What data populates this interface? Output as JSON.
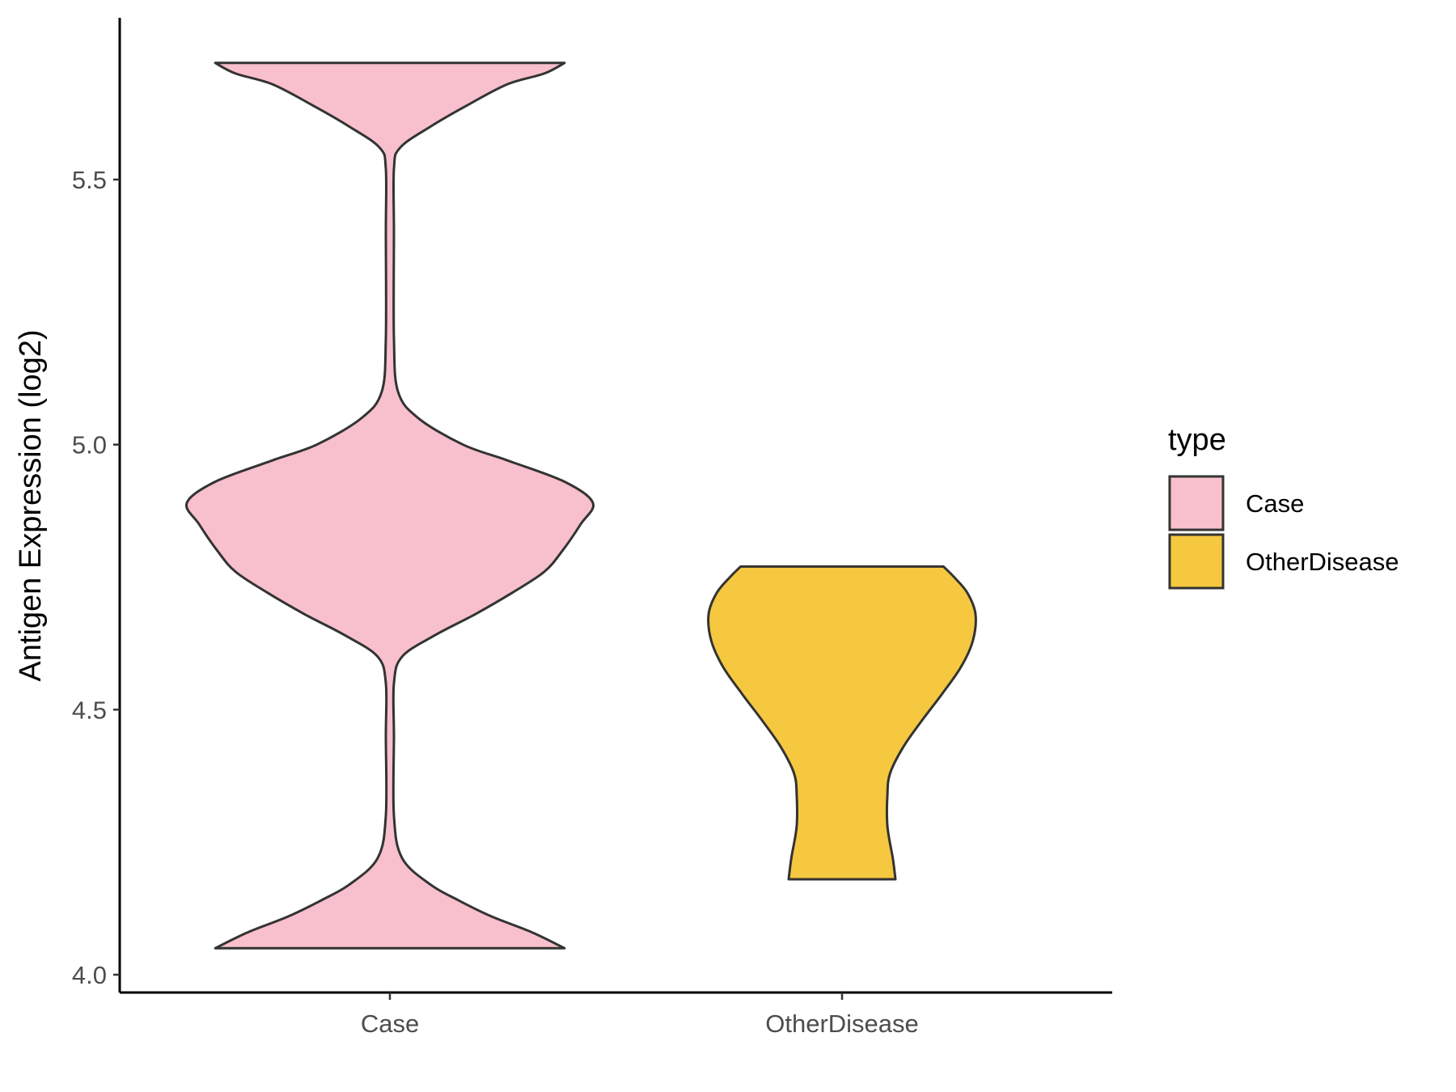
{
  "chart_data": {
    "type": "violin",
    "xlabel": "",
    "ylabel": "Antigen Expression (log2)",
    "ylim": [
      3.96,
      5.78
    ],
    "yticks": [
      "4.0",
      "4.5",
      "5.0",
      "5.5"
    ],
    "ytick_values": [
      4.0,
      4.5,
      5.0,
      5.5
    ],
    "categories": [
      "Case",
      "OtherDisease"
    ],
    "grid": false,
    "legend": {
      "title": "type",
      "placement": "right",
      "entries": [
        {
          "label": "Case",
          "color": "#F7C0CC"
        },
        {
          "label": "OtherDisease",
          "color": "#F5C83F"
        }
      ]
    },
    "outline_color": "#333333",
    "series": [
      {
        "category": "Case",
        "color": "#F7C0CC",
        "min": 4.05,
        "max": 5.72,
        "density_profile": [
          [
            4.05,
            0.86
          ],
          [
            4.08,
            0.7
          ],
          [
            4.11,
            0.5
          ],
          [
            4.14,
            0.34
          ],
          [
            4.17,
            0.2
          ],
          [
            4.22,
            0.06
          ],
          [
            4.3,
            0.02
          ],
          [
            4.45,
            0.02
          ],
          [
            4.55,
            0.02
          ],
          [
            4.6,
            0.06
          ],
          [
            4.64,
            0.22
          ],
          [
            4.68,
            0.42
          ],
          [
            4.72,
            0.6
          ],
          [
            4.76,
            0.76
          ],
          [
            4.8,
            0.85
          ],
          [
            4.85,
            0.94
          ],
          [
            4.89,
            1.0
          ],
          [
            4.93,
            0.86
          ],
          [
            4.97,
            0.58
          ],
          [
            5.0,
            0.36
          ],
          [
            5.05,
            0.14
          ],
          [
            5.1,
            0.04
          ],
          [
            5.2,
            0.02
          ],
          [
            5.4,
            0.02
          ],
          [
            5.52,
            0.02
          ],
          [
            5.56,
            0.05
          ],
          [
            5.6,
            0.2
          ],
          [
            5.64,
            0.38
          ],
          [
            5.68,
            0.58
          ],
          [
            5.7,
            0.76
          ],
          [
            5.72,
            0.86
          ]
        ]
      },
      {
        "category": "OtherDisease",
        "color": "#F5C83F",
        "min": 4.18,
        "max": 4.77,
        "density_profile": [
          [
            4.18,
            0.4
          ],
          [
            4.22,
            0.38
          ],
          [
            4.28,
            0.34
          ],
          [
            4.34,
            0.34
          ],
          [
            4.38,
            0.36
          ],
          [
            4.43,
            0.46
          ],
          [
            4.48,
            0.6
          ],
          [
            4.53,
            0.75
          ],
          [
            4.58,
            0.89
          ],
          [
            4.63,
            0.98
          ],
          [
            4.68,
            1.0
          ],
          [
            4.72,
            0.94
          ],
          [
            4.75,
            0.84
          ],
          [
            4.77,
            0.76
          ]
        ]
      }
    ]
  }
}
